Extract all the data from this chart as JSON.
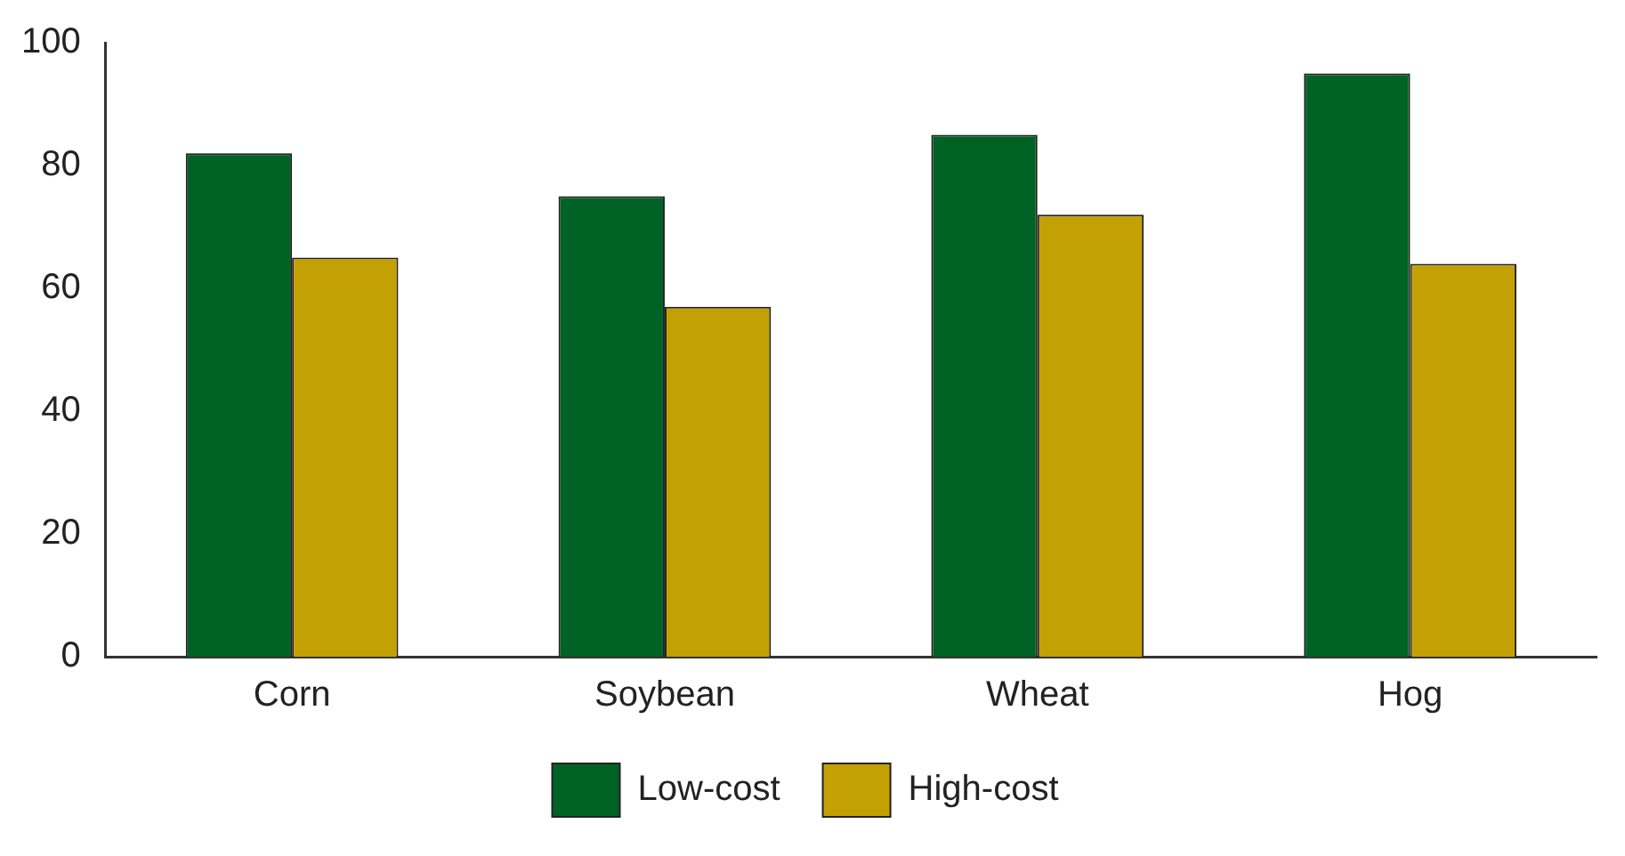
{
  "chart_data": {
    "type": "bar",
    "categories": [
      "Corn",
      "Soybean",
      "Wheat",
      "Hog"
    ],
    "series": [
      {
        "name": "Low-cost",
        "color": "#006225",
        "values": [
          82,
          75,
          85,
          95
        ]
      },
      {
        "name": "High-cost",
        "color": "#c3a104",
        "values": [
          65,
          57,
          72,
          64
        ]
      }
    ],
    "ylim": [
      0,
      100
    ],
    "yticks": [
      0,
      20,
      40,
      60,
      80,
      100
    ],
    "grid": false,
    "legend": "bottom"
  }
}
